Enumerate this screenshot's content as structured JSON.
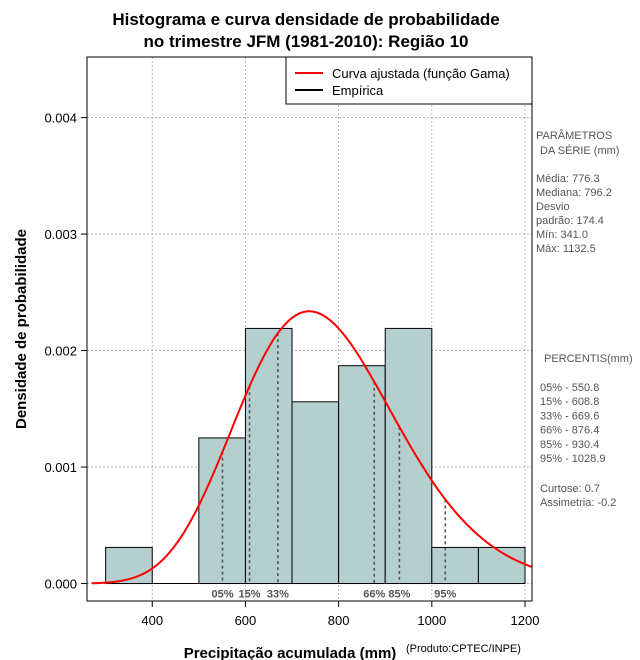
{
  "chart_data": {
    "type": "bar",
    "title_lines": [
      "Histograma e curva densidade de probabilidade",
      "no trimestre JFM (1981-2010): Região 10"
    ],
    "xlabel": "Precipitação acumulada (mm)",
    "ylabel": "Densidade de probabilidade",
    "credit": "(Produto:CPTEC/INPE)",
    "xlim": [
      260,
      1215
    ],
    "ylim": [
      -0.00015,
      0.00452
    ],
    "x_ticks": [
      400,
      600,
      800,
      1000,
      1200
    ],
    "y_ticks": [
      0.0,
      0.001,
      0.002,
      0.003,
      0.004
    ],
    "y_tick_labels": [
      "0.000",
      "0.001",
      "0.002",
      "0.003",
      "0.004"
    ],
    "grid": true,
    "bins": [
      {
        "x0": 300,
        "x1": 400,
        "density": 0.00031
      },
      {
        "x0": 500,
        "x1": 600,
        "density": 0.00125
      },
      {
        "x0": 600,
        "x1": 700,
        "density": 0.00219
      },
      {
        "x0": 700,
        "x1": 800,
        "density": 0.00156
      },
      {
        "x0": 800,
        "x1": 900,
        "density": 0.00187
      },
      {
        "x0": 900,
        "x1": 1000,
        "density": 0.00219
      },
      {
        "x0": 1000,
        "x1": 1100,
        "density": 0.00031
      },
      {
        "x0": 1100,
        "x1": 1200,
        "density": 0.00031
      }
    ],
    "fitted_curve": {
      "name": "Curva ajustada (função Gama)",
      "color": "#ff0000",
      "shape": 19.8,
      "scale": 39.2
    },
    "legend": [
      {
        "label": "Curva ajustada (função Gama)",
        "color": "#ff0000"
      },
      {
        "label": "Empírica",
        "color": "#000000"
      }
    ],
    "legend_position": "top-right",
    "percentile_markers": [
      {
        "x": 550.8,
        "label": "05%"
      },
      {
        "x": 608.8,
        "label": "15%"
      },
      {
        "x": 669.6,
        "label": "33%"
      },
      {
        "x": 876.4,
        "label": "66%"
      },
      {
        "x": 930.4,
        "label": "85%"
      },
      {
        "x": 1028.9,
        "label": "95%"
      }
    ],
    "bar_color": "#b5cfcf"
  },
  "side_panel": {
    "params_header_1": "PARÂMETROS",
    "params_header_2": "DA SÉRIE (mm)",
    "params": [
      "Média:  776.3",
      "Mediana:  796.2",
      "Desvio",
      "padrão:  174.4",
      "Mín:  341.0",
      "Máx:  1132.5"
    ],
    "percentis_header": "PERCENTIS(mm)",
    "percentis": [
      "05% -  550.8",
      "15% -  608.8",
      "33% -  669.6",
      "66% -  876.4",
      "85% -  930.4",
      "95% -  1028.9"
    ],
    "stats": [
      "Curtose:  0.7",
      "Assimetria:  -0.2"
    ]
  }
}
